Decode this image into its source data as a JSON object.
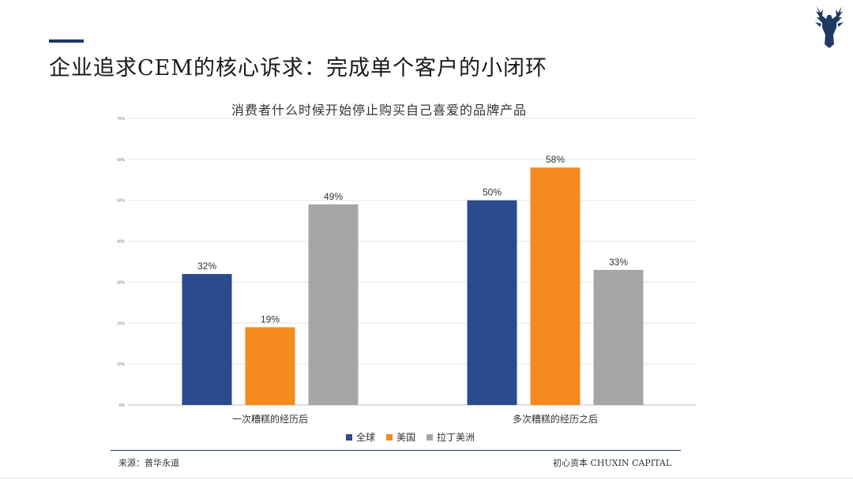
{
  "slide": {
    "title": "企业追求CEM的核心诉求：完成单个客户的小闭环",
    "source": "来源：普华永道",
    "brand": "初心资本 CHUXIN CAPITAL",
    "logo_icon": "deer-head-icon",
    "accent_color": "#1f3864"
  },
  "chart_data": {
    "type": "bar",
    "title": "消费者什么时候开始停止购买自己喜爱的品牌产品",
    "categories": [
      "一次糟糕的经历后",
      "多次糟糕的经历之后"
    ],
    "series": [
      {
        "name": "全球",
        "values": [
          32,
          50
        ],
        "labels": [
          "32%",
          "50%"
        ],
        "color": "#2a4b8d"
      },
      {
        "name": "美国",
        "values": [
          19,
          58
        ],
        "labels": [
          "19%",
          "58%"
        ],
        "color": "#f58a1f"
      },
      {
        "name": "拉丁美洲",
        "values": [
          49,
          33
        ],
        "labels": [
          "49%",
          "33%"
        ],
        "color": "#a6a6a6"
      }
    ],
    "y_ticks": [
      0,
      10,
      20,
      30,
      40,
      50,
      60,
      70
    ],
    "y_tick_labels": [
      "0%",
      "10%",
      "20%",
      "30%",
      "40%",
      "50%",
      "60%",
      "70%"
    ],
    "ylim": [
      0,
      70
    ],
    "grid": true,
    "legend_position": "bottom"
  }
}
